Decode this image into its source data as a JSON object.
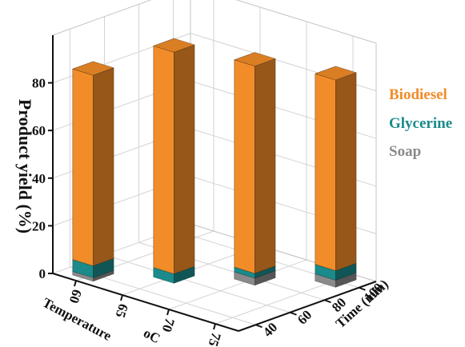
{
  "chart_data": {
    "type": "bar",
    "subtype": "3d-stacked-bar",
    "xlabel": "Temperature",
    "xlabel_unit": "oC",
    "ylabel": "Product yield (%)",
    "zlabel": "Time (min)",
    "x_ticks": [
      "60",
      "65",
      "70",
      "75"
    ],
    "z_ticks": [
      "40",
      "60",
      "80",
      "100"
    ],
    "y_ticks": [
      "0",
      "20",
      "40",
      "60",
      "80"
    ],
    "ylim": [
      0,
      100
    ],
    "grid": true,
    "legend_position": "right",
    "categories": [
      "60 oC / 40 min",
      "65 oC / 60 min",
      "70 oC / 80 min",
      "75 oC / 100 min"
    ],
    "series": [
      {
        "name": "Soap",
        "color": "#8a8a8a",
        "values": [
          1.5,
          0,
          3,
          3
        ]
      },
      {
        "name": "Glycerine",
        "color": "#1a8a8a",
        "values": [
          5,
          4,
          2,
          4
        ]
      },
      {
        "name": "Biodiesel",
        "color": "#f28c28",
        "values": [
          80,
          93,
          87,
          80
        ]
      }
    ]
  }
}
